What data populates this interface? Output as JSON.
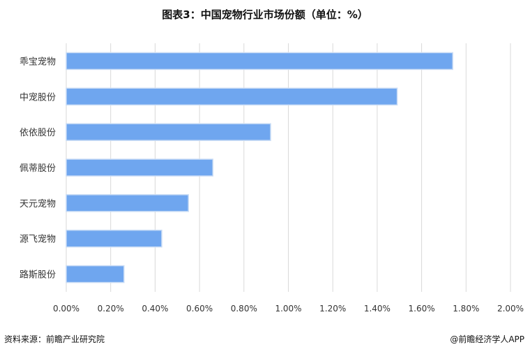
{
  "chart_data": {
    "type": "bar",
    "orientation": "horizontal",
    "title": "图表3：中国宠物行业市场份额（单位：%）",
    "categories": [
      "乖宝宠物",
      "中宠股份",
      "依依股份",
      "佩蒂股份",
      "天元宠物",
      "源飞宠物",
      "路斯股份"
    ],
    "values": [
      1.74,
      1.49,
      0.92,
      0.66,
      0.55,
      0.43,
      0.26
    ],
    "xlim": [
      0,
      2.0
    ],
    "x_ticks": [
      "0.00%",
      "0.20%",
      "0.40%",
      "0.60%",
      "0.80%",
      "1.00%",
      "1.20%",
      "1.40%",
      "1.60%",
      "1.80%",
      "2.00%"
    ],
    "grid": "vertical",
    "legend": "none",
    "bar_color": "#6fa6ef"
  },
  "footer": {
    "source": "资料来源：前瞻产业研究院",
    "brand": "@前瞻经济学人APP"
  }
}
